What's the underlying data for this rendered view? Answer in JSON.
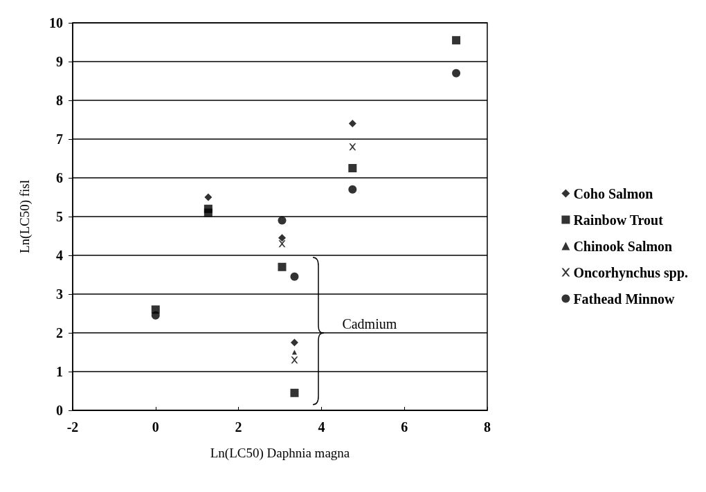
{
  "chart_data": {
    "type": "scatter",
    "xlabel": "Ln(LC50) Daphnia magna",
    "ylabel": "Ln(LC50) fisl",
    "xlim": [
      -2,
      8
    ],
    "xticks": [
      -2,
      0,
      2,
      4,
      6,
      8
    ],
    "ylim": [
      0,
      10
    ],
    "yticks": [
      0,
      1,
      2,
      3,
      4,
      5,
      6,
      7,
      8,
      9,
      10
    ],
    "grid": "y",
    "legend": "right",
    "annotations": [
      "Cadmium"
    ],
    "series": [
      {
        "name": "Coho Salmon",
        "color": "#000000",
        "marker": "diamond",
        "x": [
          1.27,
          3.05,
          3.35,
          4.75
        ],
        "values": [
          5.5,
          4.45,
          1.75,
          7.4
        ]
      },
      {
        "name": "Rainbow Trout",
        "color": "#000000",
        "marker": "square",
        "x": [
          0,
          1.27,
          1.27,
          3.05,
          3.35,
          4.75,
          7.25
        ],
        "values": [
          2.6,
          5.2,
          5.1,
          3.7,
          0.45,
          6.25,
          9.55
        ]
      },
      {
        "name": "Chinook Salmon",
        "color": "#000000",
        "marker": "triangle",
        "x": [
          3.35
        ],
        "values": [
          1.5
        ]
      },
      {
        "name": "Oncorhynchus spp.",
        "color": "#000000",
        "marker": "cross",
        "x": [
          3.05,
          3.35,
          4.75
        ],
        "values": [
          4.3,
          1.3,
          6.8
        ]
      },
      {
        "name": "Fathead Minnow",
        "color": "#000000",
        "marker": "circle",
        "x": [
          0,
          3.05,
          3.35,
          4.75,
          7.25
        ],
        "values": [
          2.45,
          4.9,
          3.45,
          5.7,
          8.7
        ]
      }
    ]
  }
}
